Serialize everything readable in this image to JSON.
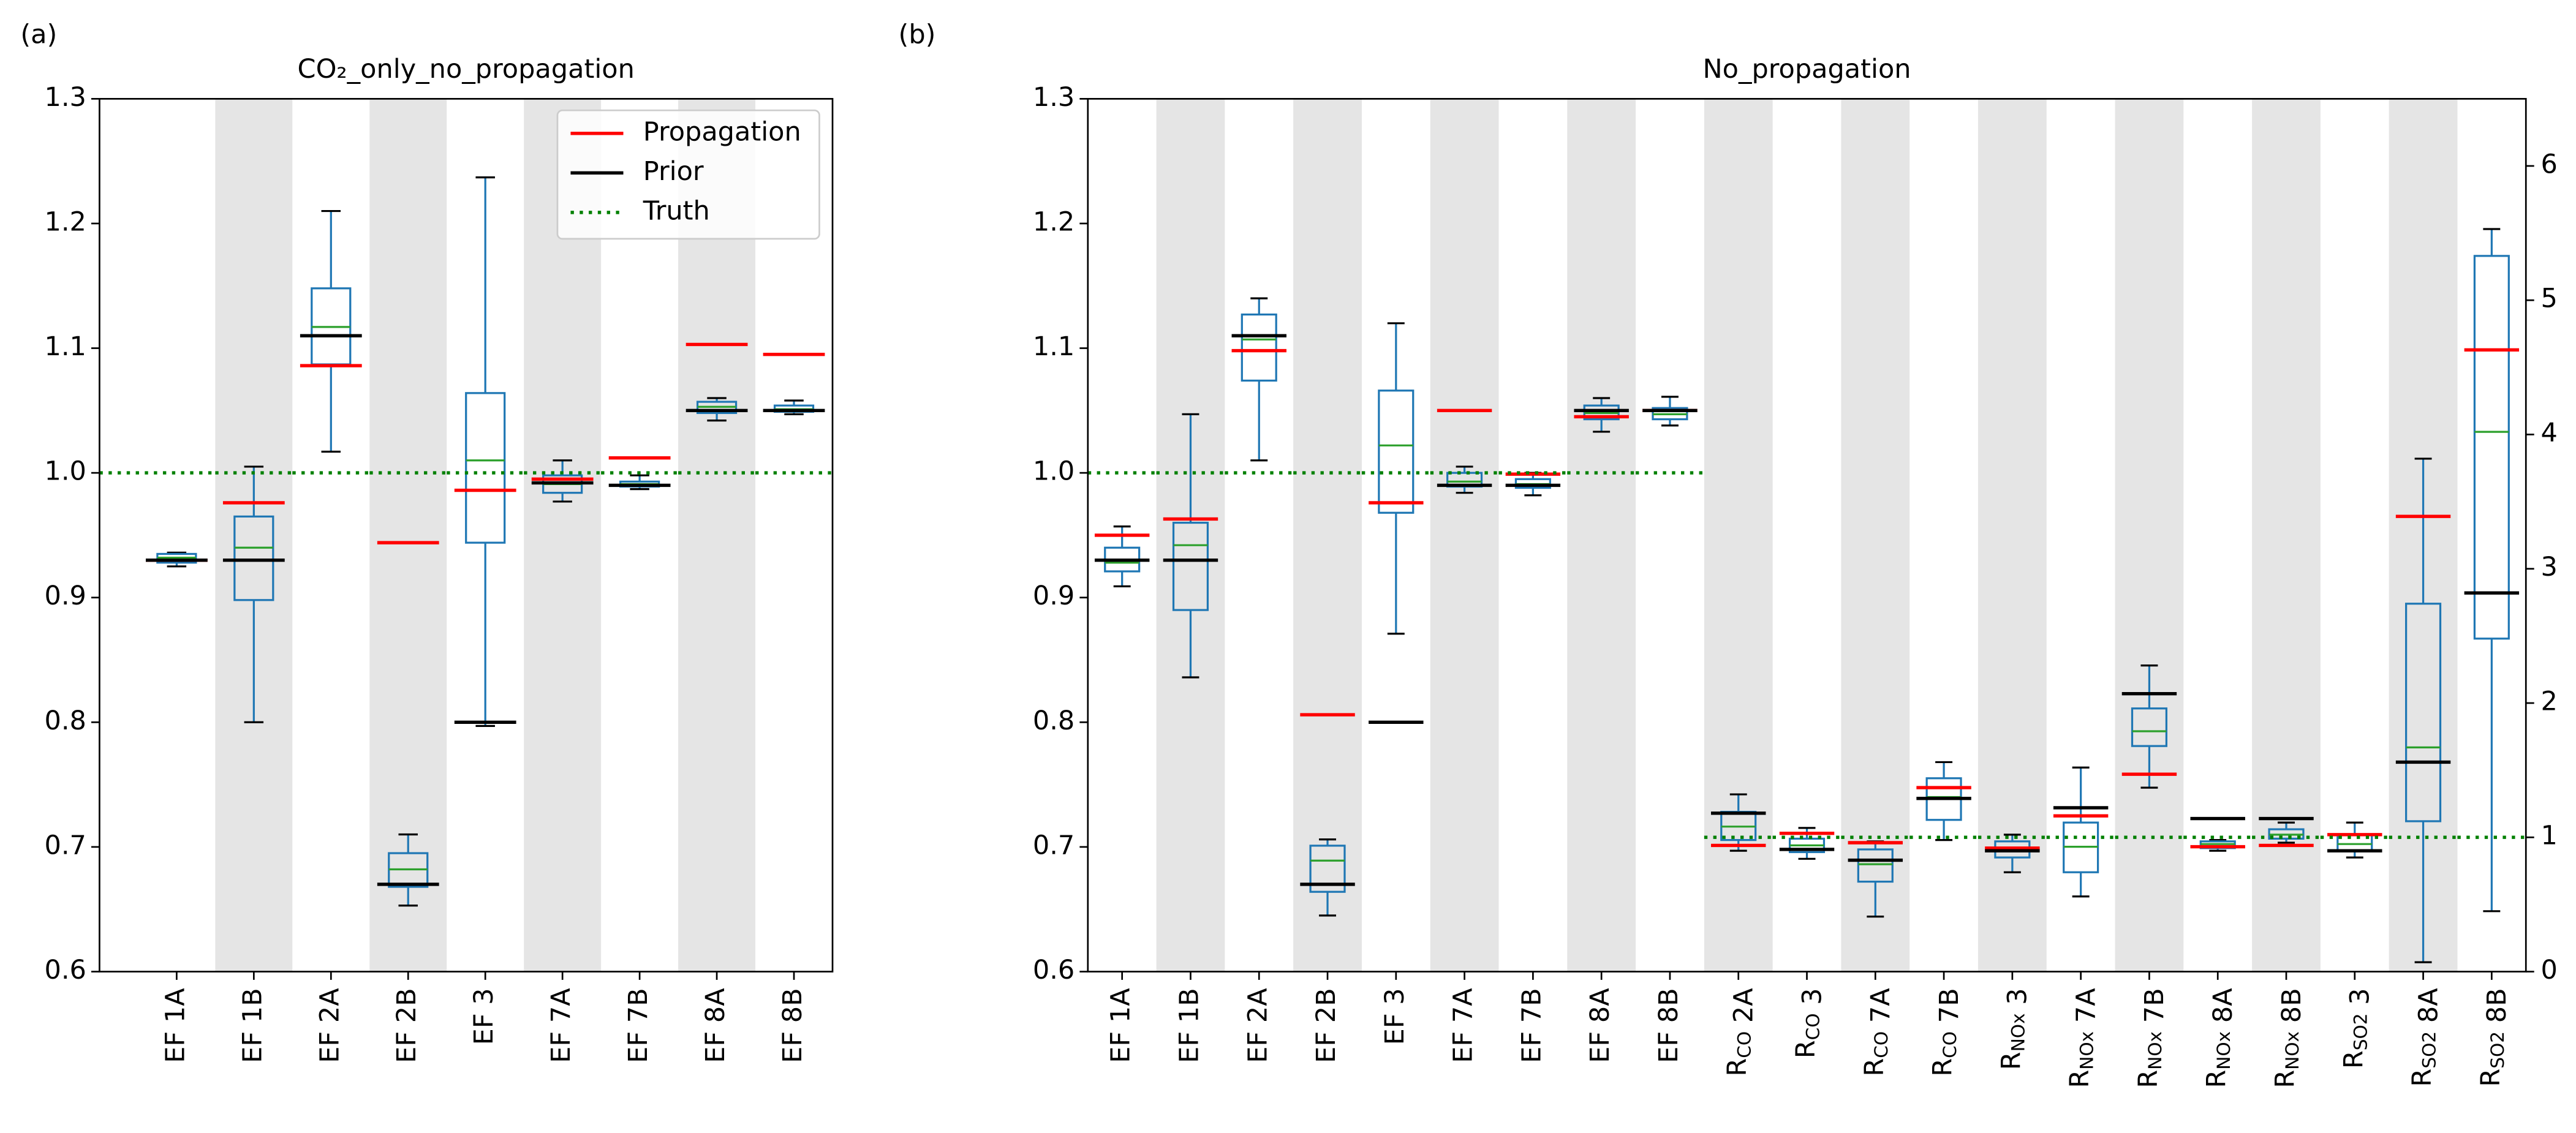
{
  "chart_data": [
    {
      "type": "box",
      "panel_label": "(a)",
      "title": "CO₂_only_no_propagation",
      "categories": [
        "EF 1A",
        "EF 1B",
        "EF 2A",
        "EF 2B",
        "EF 3",
        "EF 7A",
        "EF 7B",
        "EF 8A",
        "EF 8B"
      ],
      "xlim": [
        0,
        9.5
      ],
      "ylim": [
        0.6,
        1.3
      ],
      "yticks": [
        0.6,
        0.7,
        0.8,
        0.9,
        {
          "value": 1,
          "label": "1.0"
        },
        1.1,
        1.2,
        1.3
      ],
      "box_color": "#1f77b4",
      "median_color": "#2ca02c",
      "boxes": {
        "whislo": [
          0.925,
          0.8,
          1.017,
          0.653,
          0.797,
          0.977,
          0.987,
          1.042,
          1.047
        ],
        "q1": [
          0.928,
          0.898,
          1.087,
          0.668,
          0.944,
          0.984,
          0.989,
          1.048,
          1.049
        ],
        "median": [
          0.932,
          0.94,
          1.117,
          0.682,
          1.01,
          0.991,
          0.991,
          1.053,
          1.051
        ],
        "q3": [
          0.935,
          0.965,
          1.148,
          0.695,
          1.064,
          0.998,
          0.993,
          1.057,
          1.054
        ],
        "whishi": [
          0.936,
          1.005,
          1.21,
          0.71,
          1.237,
          1.01,
          0.998,
          1.06,
          1.058
        ]
      },
      "series": [
        {
          "name": "Propagation",
          "color": "#ff0000",
          "values": [
            0.93,
            0.976,
            1.086,
            0.944,
            0.986,
            0.995,
            1.012,
            1.103,
            1.095
          ]
        },
        {
          "name": "Prior",
          "color": "#000000",
          "values": [
            0.93,
            0.93,
            1.11,
            0.67,
            0.8,
            0.992,
            0.99,
            1.05,
            1.05
          ]
        },
        {
          "name": "Truth",
          "color": "#008000",
          "linestyle": "dotted",
          "values": [
            1,
            1,
            1,
            1,
            1,
            1,
            1,
            1,
            1
          ]
        }
      ],
      "legend": "upper right"
    },
    {
      "type": "box",
      "panel_label": "(b)",
      "title": "No_propagation",
      "categories": [
        "EF 1A",
        "EF 1B",
        "EF 2A",
        "EF 2B",
        "EF 3",
        "EF 7A",
        "EF 7B",
        "EF 8A",
        "EF 8B",
        "R_{CO} 2A",
        "R_{CO} 3",
        "R_{CO} 7A",
        "R_{CO} 7B",
        "R_{NOx} 3",
        "R_{NOx} 7A",
        "R_{NOx} 7B",
        "R_{NOx} 8A",
        "R_{NOx} 8B",
        "R_{SO2} 3",
        "R_{SO2} 8A",
        "R_{SO2} 8B"
      ],
      "axis": [
        "y",
        "y",
        "y",
        "y",
        "y",
        "y",
        "y",
        "y",
        "y",
        "y2",
        "y2",
        "y2",
        "y2",
        "y2",
        "y2",
        "y2",
        "y2",
        "y2",
        "y2",
        "y2",
        "y2"
      ],
      "xlim": [
        0.5,
        21.5
      ],
      "ylim": [
        0.6,
        1.3
      ],
      "yticks": [
        0.6,
        0.7,
        0.8,
        0.9,
        {
          "value": 1,
          "label": "1.0"
        },
        1.1,
        1.2,
        1.3
      ],
      "y2lim": [
        0,
        6.5
      ],
      "y2ticks": [
        0,
        1,
        2,
        3,
        4,
        5,
        6
      ],
      "box_color": "#1f77b4",
      "median_color": "#2ca02c",
      "boxes": {
        "whislo": [
          0.909,
          0.836,
          1.01,
          0.645,
          0.871,
          0.984,
          0.982,
          1.033,
          1.038,
          0.9,
          0.84,
          0.41,
          0.98,
          0.74,
          0.56,
          1.37,
          0.9,
          0.96,
          0.85,
          0.07,
          0.45
        ],
        "q1": [
          0.921,
          0.89,
          1.074,
          0.664,
          0.968,
          0.989,
          0.988,
          1.043,
          1.043,
          0.98,
          0.89,
          0.67,
          1.13,
          0.85,
          0.74,
          1.68,
          0.92,
          0.99,
          0.9,
          1.12,
          2.48
        ],
        "median": [
          0.928,
          0.942,
          1.107,
          0.689,
          1.022,
          0.993,
          0.991,
          1.048,
          1.047,
          1.08,
          0.94,
          0.8,
          1.3,
          0.91,
          0.93,
          1.79,
          0.95,
          1.02,
          0.95,
          1.67,
          4.02
        ],
        "q3": [
          0.94,
          0.96,
          1.127,
          0.701,
          1.066,
          1.0,
          0.995,
          1.054,
          1.052,
          1.19,
          0.99,
          0.91,
          1.44,
          0.97,
          1.11,
          1.96,
          0.97,
          1.06,
          1.02,
          2.74,
          5.33
        ],
        "whishi": [
          0.957,
          1.047,
          1.14,
          0.706,
          1.12,
          1.005,
          1.0,
          1.06,
          1.061,
          1.32,
          1.07,
          0.97,
          1.56,
          1.02,
          1.52,
          2.28,
          0.98,
          1.11,
          1.11,
          3.82,
          5.53
        ]
      },
      "series": [
        {
          "color": "#ff0000",
          "values": [
            0.95,
            0.963,
            1.098,
            0.806,
            0.976,
            1.05,
            0.999,
            1.045,
            1.05,
            0.94,
            1.03,
            0.96,
            1.37,
            0.92,
            1.16,
            1.47,
            0.93,
            0.94,
            1.02,
            3.39,
            4.63
          ]
        },
        {
          "color": "#000000",
          "values": [
            0.93,
            0.93,
            1.11,
            0.67,
            0.8,
            0.99,
            0.99,
            1.05,
            1.05,
            1.18,
            0.91,
            0.83,
            1.29,
            0.9,
            1.22,
            2.07,
            1.14,
            1.14,
            0.9,
            1.56,
            2.82
          ]
        },
        {
          "color": "#008000",
          "linestyle": "dotted",
          "values": [
            1,
            1,
            1,
            1,
            1,
            1,
            1,
            1,
            1,
            1,
            1,
            1,
            1,
            1,
            1,
            1,
            1,
            1,
            1,
            1,
            1
          ]
        }
      ]
    }
  ]
}
